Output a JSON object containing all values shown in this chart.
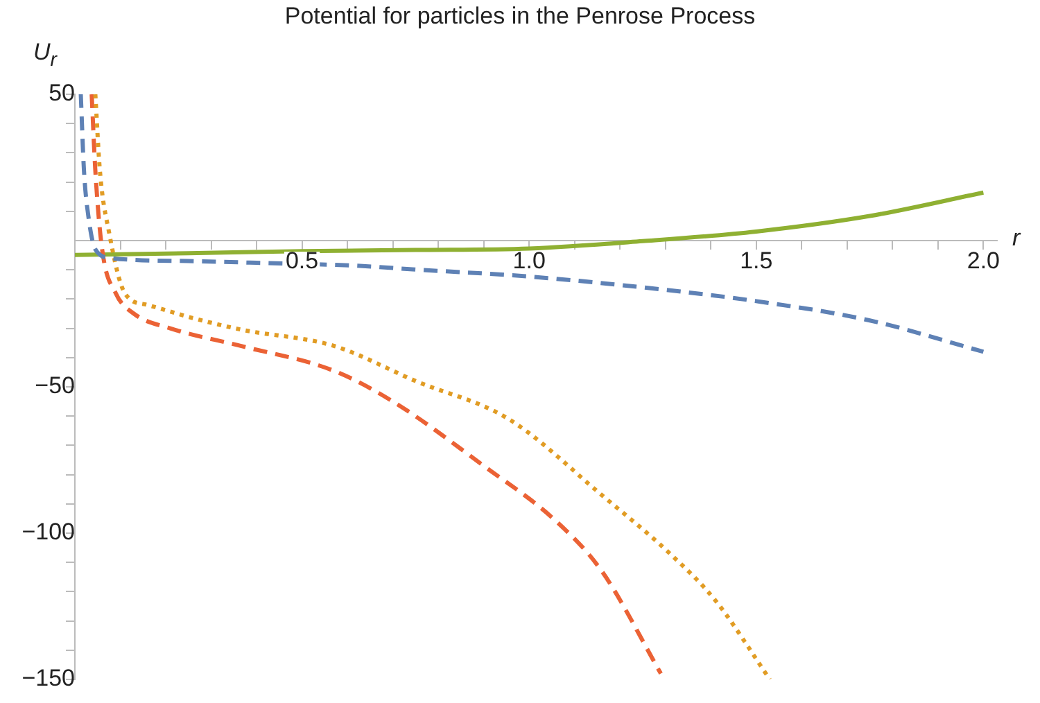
{
  "chart_data": {
    "type": "line",
    "title": "Potential for particles in the Penrose Process",
    "xlabel": "r",
    "ylabel": "U$_{r}$",
    "xlim": [
      0,
      2.03
    ],
    "ylim": [
      -150,
      50
    ],
    "xticks": [
      {
        "value": 0.1,
        "label": null
      },
      {
        "value": 0.2,
        "label": null
      },
      {
        "value": 0.3,
        "label": null
      },
      {
        "value": 0.4,
        "label": null
      },
      {
        "value": 0.5,
        "label": "0.5"
      },
      {
        "value": 0.6,
        "label": null
      },
      {
        "value": 0.7,
        "label": null
      },
      {
        "value": 0.8,
        "label": null
      },
      {
        "value": 0.9,
        "label": null
      },
      {
        "value": 1,
        "label": "1.0"
      },
      {
        "value": 1.1,
        "label": null
      },
      {
        "value": 1.2,
        "label": null
      },
      {
        "value": 1.3,
        "label": null
      },
      {
        "value": 1.4,
        "label": null
      },
      {
        "value": 1.5,
        "label": "1.5"
      },
      {
        "value": 1.6,
        "label": null
      },
      {
        "value": 1.7,
        "label": null
      },
      {
        "value": 1.8,
        "label": null
      },
      {
        "value": 1.9,
        "label": null
      },
      {
        "value": 2,
        "label": "2.0"
      }
    ],
    "yticks": [
      -150,
      {
        "value": -140,
        "label": null
      },
      {
        "value": -130,
        "label": null
      },
      {
        "value": -120,
        "label": null
      },
      {
        "value": -110,
        "label": null
      },
      -100,
      {
        "value": -90,
        "label": null
      },
      {
        "value": -80,
        "label": null
      },
      {
        "value": -70,
        "label": null
      },
      {
        "value": -60,
        "label": null
      },
      -50,
      {
        "value": -40,
        "label": null
      },
      {
        "value": -30,
        "label": null
      },
      {
        "value": -20,
        "label": null
      },
      {
        "value": -10,
        "label": null
      },
      {
        "value": 10,
        "label": null
      },
      {
        "value": 20,
        "label": null
      },
      {
        "value": 30,
        "label": null
      },
      {
        "value": 40,
        "label": null
      },
      50
    ],
    "grid": false,
    "legend": false,
    "marker": "none",
    "series": [
      {
        "color": "#5e81b5",
        "line_style": "dashed",
        "x": [
          0.013,
          0.02,
          0.03,
          0.045,
          0.08,
          0.25,
          0.4,
          0.62,
          0.75,
          1,
          1.25,
          1.5,
          1.75,
          2
        ],
        "values": [
          50,
          24,
          8,
          -3,
          -6,
          -7,
          -7.6,
          -8.6,
          -9.9,
          -12.3,
          -16,
          -20.7,
          -27.3,
          -38
        ]
      },
      {
        "color": "#e19c24",
        "line_style": "dotted",
        "x": [
          0.045,
          0.055,
          0.075,
          0.11,
          0.16,
          0.26,
          0.365,
          0.57,
          0.75,
          0.955,
          1.16,
          1.31,
          1.41,
          1.53
        ],
        "values": [
          50,
          24,
          3,
          -18,
          -22,
          -26.5,
          -30.4,
          -36,
          -48,
          -61,
          -87,
          -107,
          -123,
          -150
        ]
      },
      {
        "color": "#eb6235",
        "line_style": "dashed",
        "x": [
          0.037,
          0.045,
          0.06,
          0.09,
          0.13,
          0.21,
          0.365,
          0.57,
          0.7,
          0.9,
          1.06,
          1.16,
          1.29
        ],
        "values": [
          50,
          24,
          -3,
          -18,
          -25,
          -30,
          -36,
          -44.5,
          -55,
          -77,
          -96,
          -113,
          -148
        ]
      },
      {
        "color": "#8fb032",
        "line_style": "solid",
        "x": [
          0,
          0.25,
          0.5,
          0.75,
          1,
          1.25,
          1.5,
          1.75,
          2
        ],
        "values": [
          -4.9,
          -4.3,
          -3.6,
          -3.2,
          -2.7,
          -0.2,
          3.1,
          8.4,
          16.4
        ]
      }
    ]
  }
}
